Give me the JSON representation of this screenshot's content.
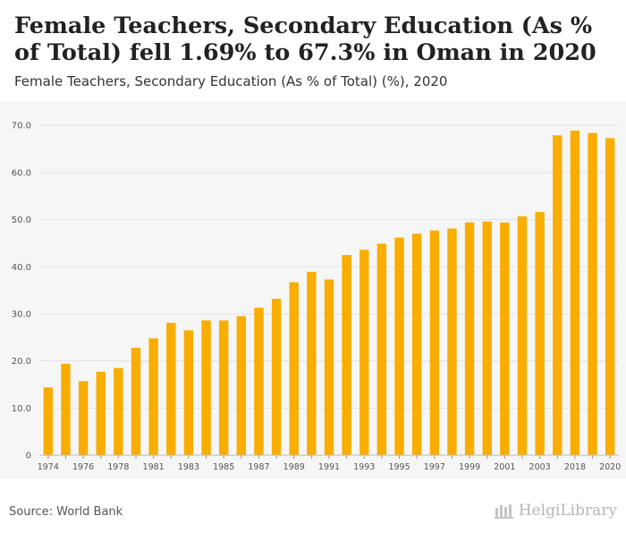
{
  "title": "Female Teachers, Secondary Education (As % of Total) fell 1.69% to 67.3% in Oman in 2020",
  "subtitle": "Female Teachers, Secondary Education (As % of Total) (%), 2020",
  "source": "Source: World Bank",
  "brand": {
    "name": "HelgiLibrary",
    "icon": "library-building-icon",
    "color": "#b7b7b7"
  },
  "colors": {
    "bar": "#f9ad00",
    "grid": "#e2e2e2",
    "axis_text": "#555555"
  },
  "chart_data": {
    "type": "bar",
    "categories": [
      "1974",
      "1975",
      "1976",
      "1977",
      "1978",
      "1979",
      "1981",
      "1982",
      "1983",
      "1984",
      "1985",
      "1986",
      "1987",
      "1988",
      "1989",
      "1990",
      "1991",
      "1992",
      "1993",
      "1994",
      "1995",
      "1996",
      "1997",
      "1998",
      "1999",
      "2000",
      "2001",
      "2002",
      "2003",
      "2004",
      "2018",
      "2019",
      "2020"
    ],
    "tick_labels": [
      "1974",
      "",
      "1976",
      "",
      "1978",
      "",
      "1981",
      "",
      "1983",
      "",
      "1985",
      "",
      "1987",
      "",
      "1989",
      "",
      "1991",
      "",
      "1993",
      "",
      "1995",
      "",
      "1997",
      "",
      "1999",
      "",
      "2001",
      "",
      "2003",
      "",
      "2018",
      "",
      "2020"
    ],
    "values": [
      14.4,
      19.4,
      15.7,
      17.7,
      18.5,
      22.8,
      24.8,
      28.1,
      26.5,
      28.6,
      28.6,
      29.5,
      31.3,
      33.2,
      36.7,
      38.9,
      37.3,
      42.5,
      43.6,
      44.9,
      46.2,
      47.0,
      47.7,
      48.1,
      49.4,
      49.6,
      49.4,
      50.7,
      51.6,
      67.9,
      68.9,
      68.4,
      67.3
    ],
    "y_ticks": [
      0,
      10,
      20,
      30,
      40,
      50,
      60,
      70
    ],
    "y_tick_labels": [
      "0",
      "10.0",
      "20.0",
      "30.0",
      "40.0",
      "50.0",
      "60.0",
      "70.0"
    ],
    "ylim": [
      0,
      72.7
    ],
    "grid": true,
    "xlabel": "",
    "ylabel": ""
  }
}
